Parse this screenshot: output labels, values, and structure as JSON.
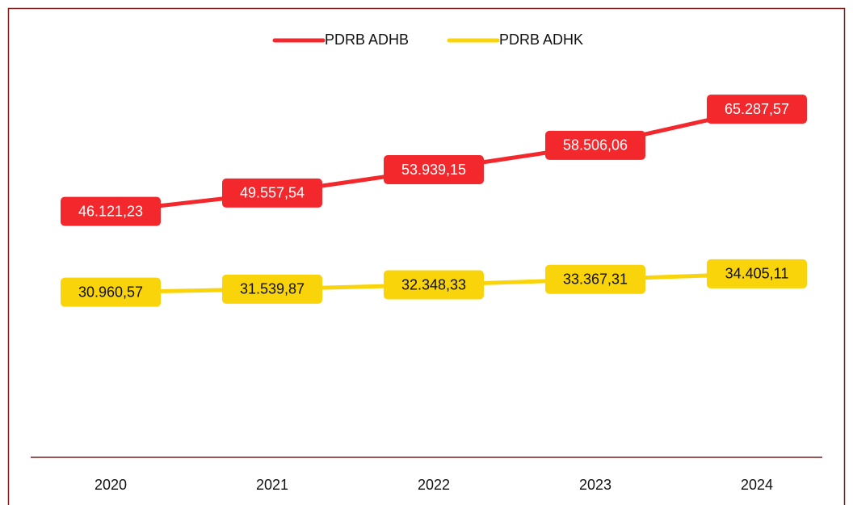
{
  "chart_data": {
    "type": "line",
    "categories": [
      "2020",
      "2021",
      "2022",
      "2023",
      "2024"
    ],
    "series": [
      {
        "name": "PDRB ADHB",
        "color": "#f2282d",
        "values": [
          46121.23,
          49557.54,
          53939.15,
          58506.06,
          65287.57
        ],
        "value_labels": [
          "46.121,23",
          "49.557,54",
          "53.939,15",
          "58.506,06",
          "65.287,57"
        ]
      },
      {
        "name": "PDRB ADHK",
        "color": "#f9d40a",
        "values": [
          30960.57,
          31539.87,
          32348.33,
          33367.31,
          34405.11
        ],
        "value_labels": [
          "30.960,57",
          "31.539,87",
          "32.348,33",
          "33.367,31",
          "34.405,11"
        ]
      }
    ],
    "ylim": [
      0,
      80000
    ],
    "legend": "top"
  }
}
